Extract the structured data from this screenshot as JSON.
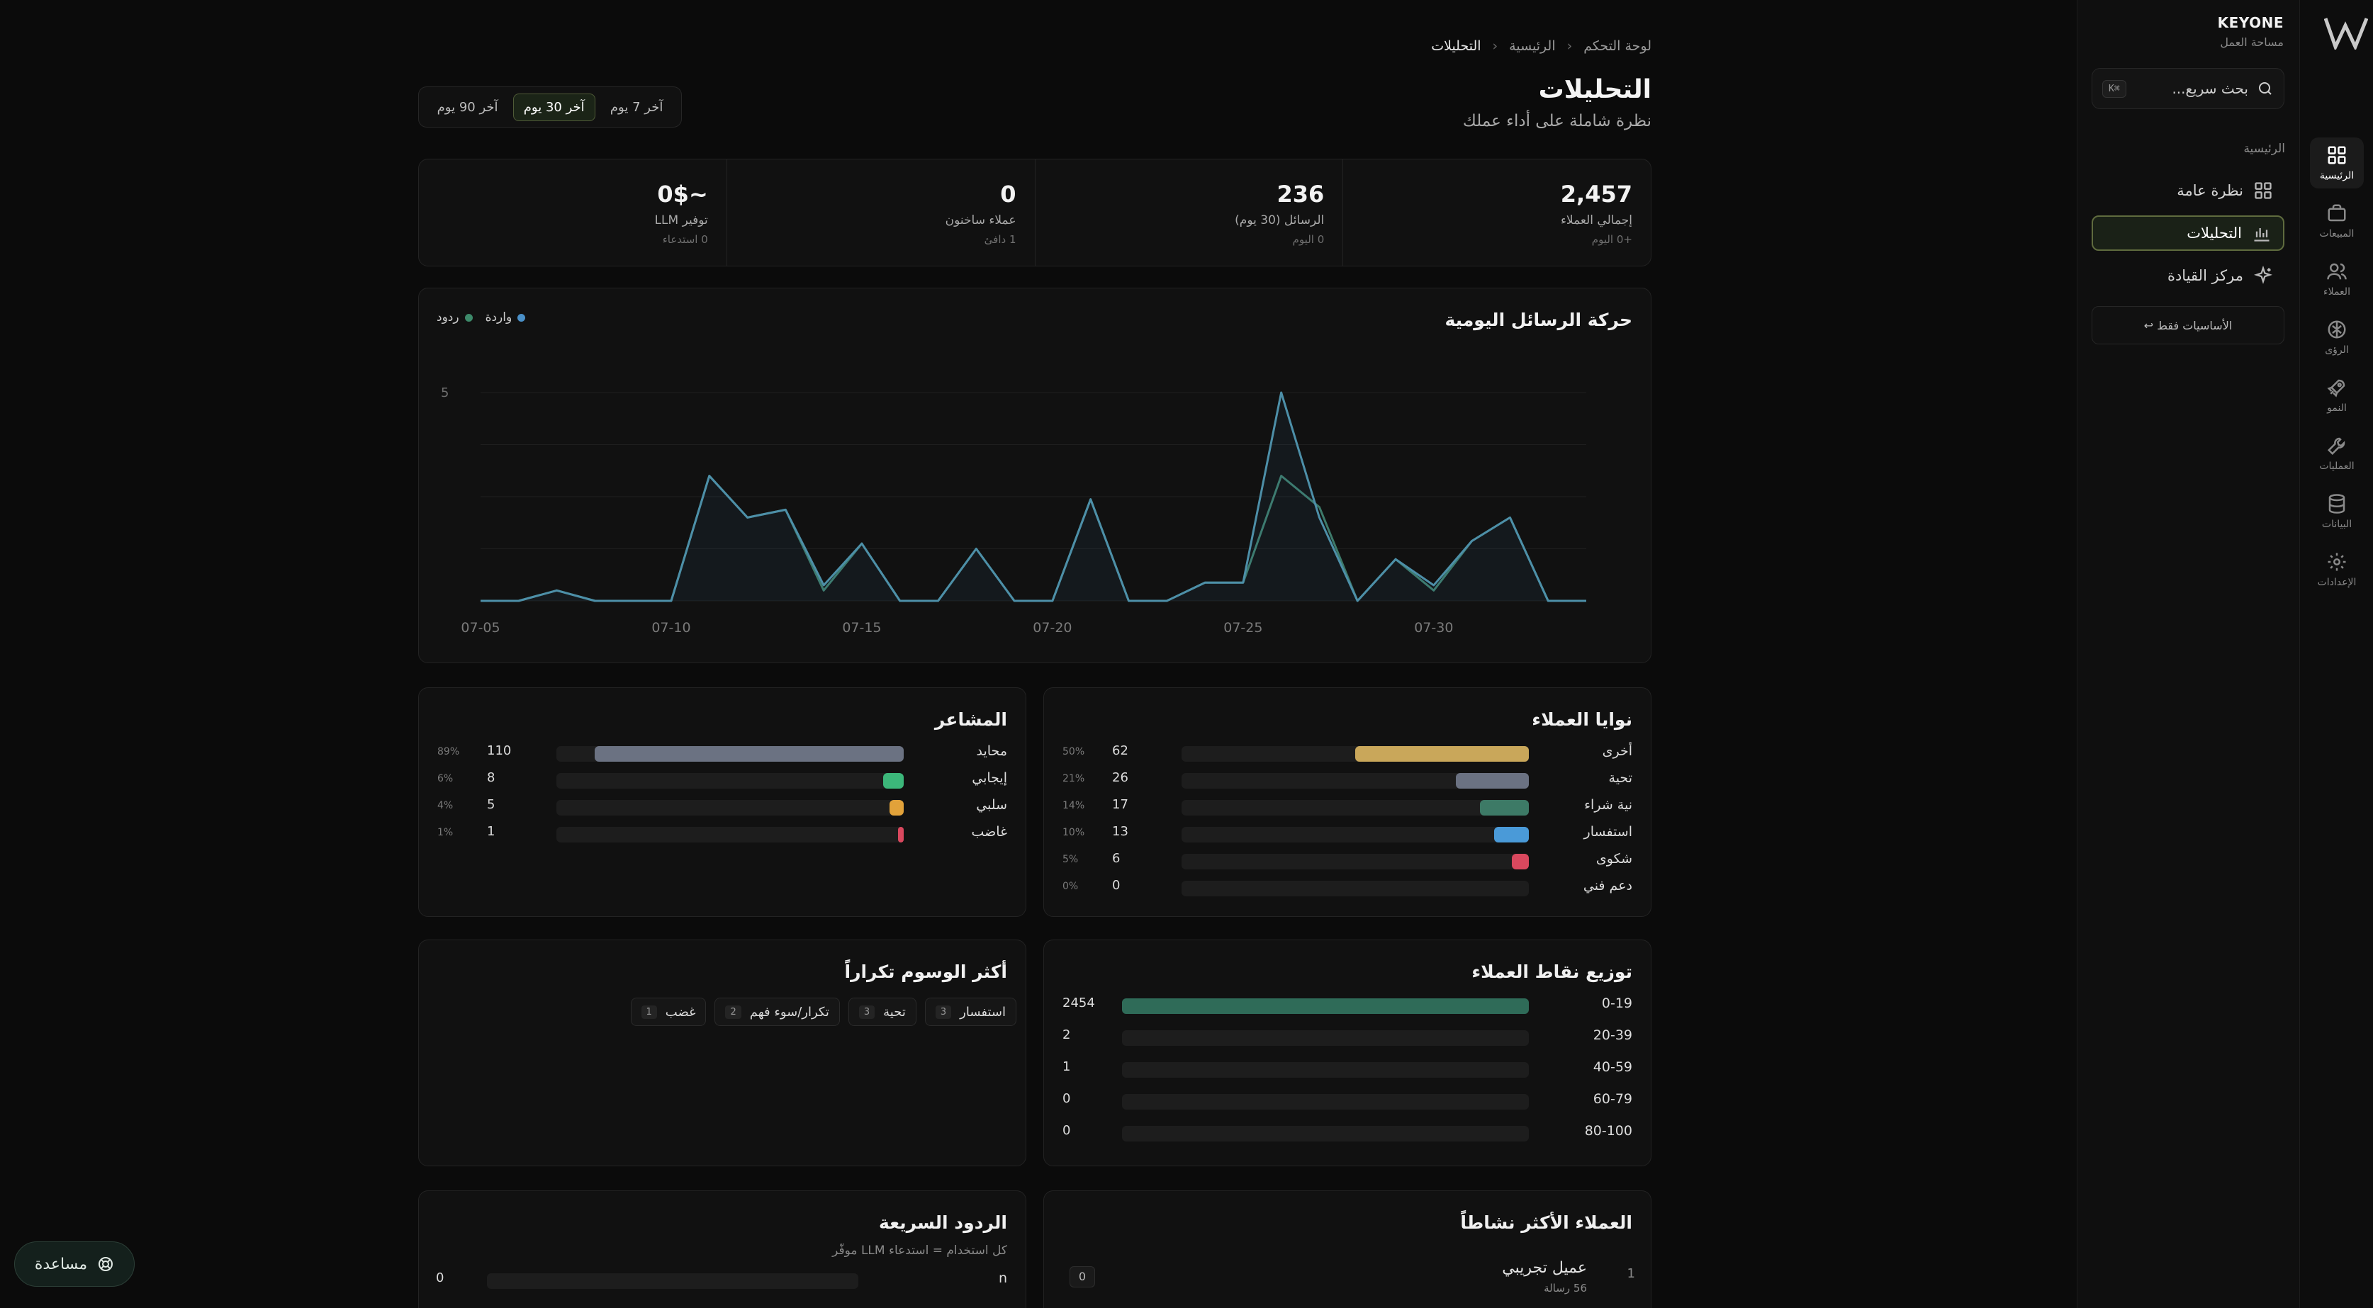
{
  "brand": {
    "name": "KEYONE",
    "subtitle": "مساحة العمل"
  },
  "search": {
    "placeholder": "بحث سريع...",
    "shortcut": "K⌘"
  },
  "rail": [
    {
      "label": "الرئيسية",
      "icon": "grid-icon",
      "active": true
    },
    {
      "label": "المبيعات",
      "icon": "briefcase-icon",
      "active": false
    },
    {
      "label": "العملاء",
      "icon": "users-icon",
      "active": false
    },
    {
      "label": "الرؤى",
      "icon": "brain-icon",
      "active": false
    },
    {
      "label": "النمو",
      "icon": "rocket-icon",
      "active": false
    },
    {
      "label": "العمليات",
      "icon": "wrench-icon",
      "active": false
    },
    {
      "label": "البيانات",
      "icon": "database-icon",
      "active": false
    },
    {
      "label": "الإعدادات",
      "icon": "gear-icon",
      "active": false
    }
  ],
  "sidebar": {
    "section": "الرئيسية",
    "items": [
      {
        "label": "نظرة عامة",
        "icon": "grid-icon",
        "active": false
      },
      {
        "label": "التحليلات",
        "icon": "bar-chart-icon",
        "active": true
      },
      {
        "label": "مركز القيادة",
        "icon": "sparkle-icon",
        "active": false
      }
    ],
    "basics_button": "↩ الأساسيات فقط"
  },
  "header": {
    "breadcrumb": [
      "لوحة التحكم",
      "الرئيسية",
      "التحليلات"
    ],
    "title": "التحليلات",
    "subtitle": "نظرة شاملة على أداء عملك"
  },
  "ranges": [
    {
      "label": "آخر 7 يوم",
      "active": false
    },
    {
      "label": "آخر 30 يوم",
      "active": true
    },
    {
      "label": "آخر 90 يوم",
      "active": false
    }
  ],
  "stats": [
    {
      "value": "2,457",
      "label": "إجمالي العملاء",
      "sub": "+0 اليوم"
    },
    {
      "value": "236",
      "label": "الرسائل (30 يوم)",
      "sub": "0 اليوم"
    },
    {
      "value": "0",
      "label": "عملاء ساخنون",
      "sub": "1 دافئ"
    },
    {
      "value": "~0$",
      "label": "توفير LLM",
      "sub": "0 استدعاء"
    }
  ],
  "daily_chart": {
    "title": "حركة الرسائل اليومية",
    "legend": [
      {
        "name": "واردة",
        "color": "#4a90c8"
      },
      {
        "name": "ردود",
        "color": "#3d8a6a"
      }
    ]
  },
  "chart_data": {
    "type": "line",
    "title": "حركة الرسائل اليومية",
    "x": [
      "07-05",
      "07-06",
      "07-07",
      "07-08",
      "07-09",
      "07-10",
      "07-11",
      "07-12",
      "07-13",
      "07-14",
      "07-15",
      "07-16",
      "07-17",
      "07-18",
      "07-19",
      "07-20",
      "07-21",
      "07-22",
      "07-23",
      "07-24",
      "07-25",
      "07-26",
      "07-27",
      "07-28",
      "07-29",
      "07-30",
      "07-31",
      "08-01",
      "08-02",
      "08-03"
    ],
    "x_ticks": [
      "07-05",
      "07-10",
      "07-15",
      "07-20",
      "07-25",
      "07-30"
    ],
    "y_ticks": [
      "5"
    ],
    "series": [
      {
        "name": "واردة",
        "color": "#4a90c8",
        "values": [
          0,
          0,
          0.2,
          0,
          0,
          0,
          2.4,
          1.6,
          1.75,
          0.3,
          1.1,
          0,
          0,
          1,
          0,
          0,
          1.95,
          0,
          0,
          0.35,
          0.35,
          4,
          1.6,
          0,
          0.8,
          0.3,
          1.15,
          1.6,
          0,
          0
        ]
      },
      {
        "name": "ردود",
        "color": "#3d8a6a",
        "values": [
          0,
          0,
          0.2,
          0,
          0,
          0,
          2.4,
          1.6,
          1.75,
          0.2,
          1.1,
          0,
          0,
          1,
          0,
          0,
          1.95,
          0,
          0,
          0.35,
          0.35,
          2.4,
          1.8,
          0,
          0.8,
          0.2,
          1.15,
          1.6,
          0,
          0
        ]
      }
    ]
  },
  "intents": {
    "title": "نوايا العملاء",
    "rows": [
      {
        "name": "أخرى",
        "count": 62,
        "pct": "50%",
        "frac": 0.5,
        "color": "#c9a75a"
      },
      {
        "name": "تحية",
        "count": 26,
        "pct": "21%",
        "frac": 0.21,
        "color": "#6b7282"
      },
      {
        "name": "نية شراء",
        "count": 17,
        "pct": "14%",
        "frac": 0.14,
        "color": "#3d7a66"
      },
      {
        "name": "استفسار",
        "count": 13,
        "pct": "10%",
        "frac": 0.1,
        "color": "#4a9ad8"
      },
      {
        "name": "شكوى",
        "count": 6,
        "pct": "5%",
        "frac": 0.05,
        "color": "#d9485e"
      },
      {
        "name": "دعم فني",
        "count": 0,
        "pct": "0%",
        "frac": 0,
        "color": "#555555"
      }
    ]
  },
  "sentiment": {
    "title": "المشاعر",
    "rows": [
      {
        "name": "محايد",
        "count": 110,
        "pct": "89%",
        "frac": 0.89,
        "color": "#6b7282"
      },
      {
        "name": "إيجابي",
        "count": 8,
        "pct": "6%",
        "frac": 0.06,
        "color": "#3cb77a"
      },
      {
        "name": "سلبي",
        "count": 5,
        "pct": "4%",
        "frac": 0.04,
        "color": "#e2a23a"
      },
      {
        "name": "غاضب",
        "count": 1,
        "pct": "1%",
        "frac": 0.01,
        "color": "#d9485e"
      }
    ]
  },
  "scores": {
    "title": "توزيع نقاط العملاء",
    "rows": [
      {
        "range": "0-19",
        "count": 2454,
        "frac": 1.0
      },
      {
        "range": "20-39",
        "count": 2,
        "frac": 0
      },
      {
        "range": "40-59",
        "count": 1,
        "frac": 0
      },
      {
        "range": "60-79",
        "count": 0,
        "frac": 0
      },
      {
        "range": "80-100",
        "count": 0,
        "frac": 0
      }
    ],
    "color": "#2f6b58"
  },
  "tags": {
    "title": "أكثر الوسوم تكراراً",
    "items": [
      {
        "label": "استفسار",
        "count": "3"
      },
      {
        "label": "تحية",
        "count": "3"
      },
      {
        "label": "تكرار/سوء فهم",
        "count": "2"
      },
      {
        "label": "غضب",
        "count": "1"
      }
    ]
  },
  "active_customers": {
    "title": "العملاء الأكثر نشاطاً",
    "rows": [
      {
        "rank": "1",
        "name": "عميل تجريبي",
        "messages": "56 رسالة",
        "badge": "0"
      }
    ]
  },
  "quick_replies": {
    "title": "الردود السريعة",
    "subtitle": "كل استخدام = استدعاء LLM موفّر",
    "rows": [
      {
        "name": "n",
        "count": "0"
      }
    ]
  },
  "help": {
    "label": "مساعدة"
  }
}
